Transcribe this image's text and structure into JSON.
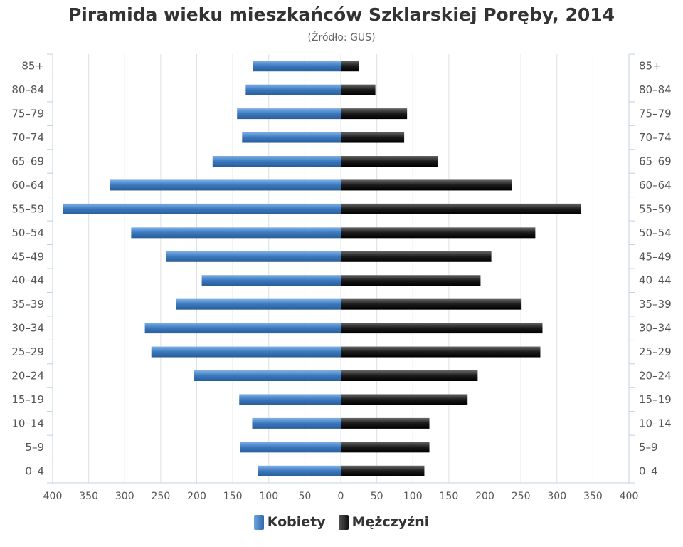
{
  "title": "Piramida wieku mieszkańców Szklarskiej Poręby, 2014",
  "subtitle": "(Źródło: GUS)",
  "colors": {
    "kobiety": "#3a78be",
    "mezczyzni": "#1a1a1a"
  },
  "chart_data": {
    "type": "bar",
    "orientation": "horizontal-pyramid",
    "categories": [
      "0–4",
      "5–9",
      "10–14",
      "15–19",
      "20–24",
      "25–29",
      "30–34",
      "35–39",
      "40–44",
      "45–49",
      "50–54",
      "55–59",
      "60–64",
      "65–69",
      "70–74",
      "75–79",
      "80–84",
      "85+"
    ],
    "series": [
      {
        "name": "Kobiety",
        "side": "left",
        "values": [
          115,
          140,
          123,
          141,
          204,
          263,
          272,
          229,
          193,
          242,
          291,
          386,
          320,
          178,
          137,
          144,
          132,
          122
        ]
      },
      {
        "name": "Mężczyźni",
        "side": "right",
        "values": [
          116,
          123,
          123,
          176,
          190,
          277,
          280,
          251,
          194,
          209,
          270,
          333,
          238,
          135,
          88,
          92,
          48,
          25
        ]
      }
    ],
    "x_ticks_left": [
      "400",
      "350",
      "300",
      "250",
      "200",
      "150",
      "100",
      "50",
      "0"
    ],
    "x_ticks_right": [
      "50",
      "100",
      "150",
      "200",
      "250",
      "300",
      "350",
      "400"
    ],
    "xlim": [
      -400,
      400
    ],
    "grid": true,
    "legend_position": "bottom"
  }
}
